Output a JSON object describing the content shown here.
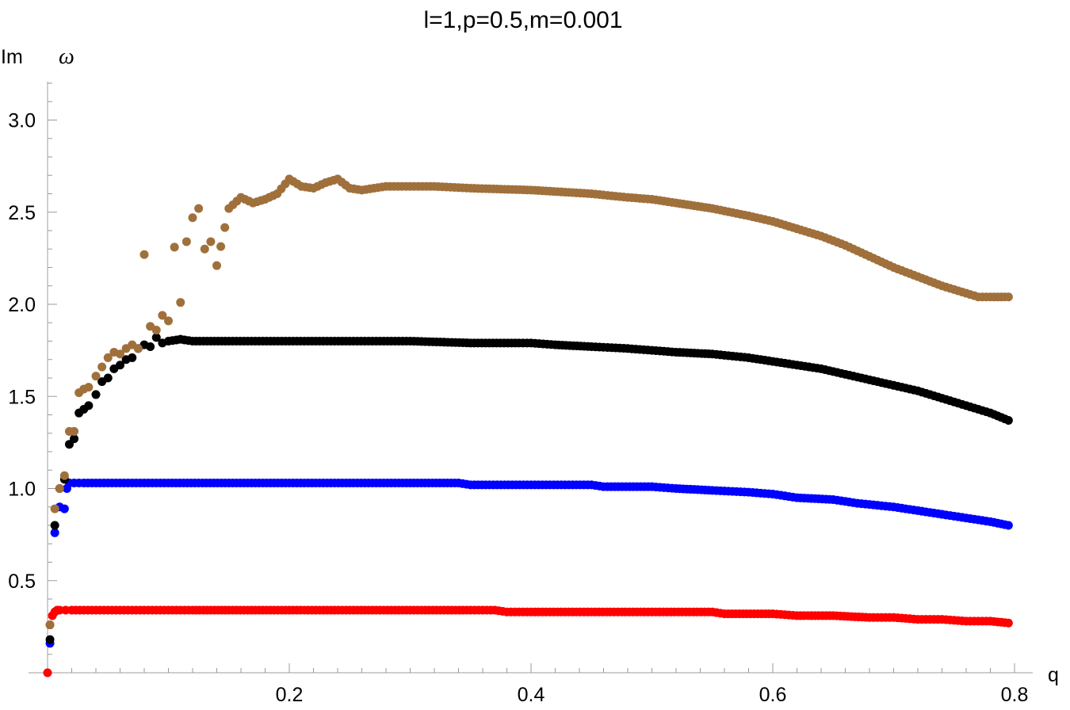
{
  "chart_data": {
    "type": "scatter",
    "title": "l=1,p=0.5,m=0.001",
    "xlabel": "q",
    "ylabel_parts": [
      "Im",
      "ω"
    ],
    "xlim": [
      0,
      0.8
    ],
    "ylim": [
      0,
      3.2
    ],
    "xticks": [
      {
        "value": 0.2,
        "label": "0.2"
      },
      {
        "value": 0.4,
        "label": "0.4"
      },
      {
        "value": 0.6,
        "label": "0.6"
      },
      {
        "value": 0.8,
        "label": "0.8"
      }
    ],
    "yticks": [
      {
        "value": 0.5,
        "label": "0.5"
      },
      {
        "value": 1.0,
        "label": "1.0"
      },
      {
        "value": 1.5,
        "label": "1.5"
      },
      {
        "value": 2.0,
        "label": "2.0"
      },
      {
        "value": 2.5,
        "label": "2.5"
      },
      {
        "value": 3.0,
        "label": "3.0"
      }
    ],
    "grid": false,
    "series": [
      {
        "color": "#ff0000",
        "x": [
          0.0,
          0.002,
          0.004,
          0.006,
          0.008,
          0.01,
          0.015,
          0.02,
          0.03,
          0.04,
          0.05,
          0.06,
          0.08,
          0.1,
          0.12,
          0.15,
          0.2,
          0.25,
          0.3,
          0.35,
          0.37,
          0.38,
          0.4,
          0.45,
          0.5,
          0.55,
          0.56,
          0.6,
          0.62,
          0.65,
          0.68,
          0.7,
          0.72,
          0.74,
          0.76,
          0.78,
          0.795
        ],
        "y": [
          0.0,
          0.26,
          0.31,
          0.33,
          0.34,
          0.34,
          0.34,
          0.34,
          0.34,
          0.34,
          0.34,
          0.34,
          0.34,
          0.34,
          0.34,
          0.34,
          0.34,
          0.34,
          0.34,
          0.34,
          0.34,
          0.33,
          0.33,
          0.33,
          0.33,
          0.33,
          0.32,
          0.32,
          0.31,
          0.31,
          0.3,
          0.3,
          0.29,
          0.29,
          0.28,
          0.28,
          0.27
        ]
      },
      {
        "color": "#0000ff",
        "x": [
          0.002,
          0.006,
          0.01,
          0.014,
          0.016,
          0.018,
          0.022,
          0.03,
          0.04,
          0.06,
          0.08,
          0.1,
          0.15,
          0.2,
          0.25,
          0.3,
          0.34,
          0.35,
          0.4,
          0.45,
          0.46,
          0.5,
          0.52,
          0.55,
          0.58,
          0.6,
          0.62,
          0.65,
          0.67,
          0.7,
          0.72,
          0.74,
          0.76,
          0.78,
          0.795
        ],
        "y": [
          0.16,
          0.76,
          0.9,
          0.89,
          1.0,
          1.03,
          1.03,
          1.03,
          1.03,
          1.03,
          1.03,
          1.03,
          1.03,
          1.03,
          1.03,
          1.03,
          1.03,
          1.02,
          1.02,
          1.02,
          1.01,
          1.01,
          1.0,
          0.99,
          0.98,
          0.97,
          0.95,
          0.94,
          0.92,
          0.9,
          0.88,
          0.86,
          0.84,
          0.82,
          0.8
        ]
      },
      {
        "color": "#000000",
        "x": [
          0.002,
          0.006,
          0.01,
          0.014,
          0.018,
          0.022,
          0.026,
          0.03,
          0.034,
          0.04,
          0.045,
          0.05,
          0.055,
          0.06,
          0.065,
          0.07,
          0.075,
          0.08,
          0.085,
          0.09,
          0.095,
          0.1,
          0.11,
          0.12,
          0.15,
          0.2,
          0.25,
          0.3,
          0.35,
          0.39,
          0.4,
          0.42,
          0.45,
          0.48,
          0.5,
          0.52,
          0.55,
          0.58,
          0.6,
          0.62,
          0.64,
          0.66,
          0.68,
          0.7,
          0.72,
          0.74,
          0.76,
          0.78,
          0.795
        ],
        "y": [
          0.18,
          0.8,
          1.0,
          1.05,
          1.24,
          1.27,
          1.41,
          1.43,
          1.45,
          1.51,
          1.58,
          1.6,
          1.65,
          1.67,
          1.7,
          1.71,
          1.76,
          1.78,
          1.77,
          1.82,
          1.79,
          1.8,
          1.81,
          1.8,
          1.8,
          1.8,
          1.8,
          1.8,
          1.79,
          1.79,
          1.79,
          1.78,
          1.77,
          1.76,
          1.75,
          1.74,
          1.73,
          1.71,
          1.69,
          1.67,
          1.65,
          1.62,
          1.59,
          1.56,
          1.53,
          1.49,
          1.45,
          1.41,
          1.37
        ]
      },
      {
        "color": "#a0703c",
        "x": [
          0.002,
          0.006,
          0.01,
          0.014,
          0.018,
          0.022,
          0.026,
          0.03,
          0.034,
          0.04,
          0.045,
          0.05,
          0.055,
          0.06,
          0.065,
          0.07,
          0.075,
          0.08,
          0.085,
          0.09,
          0.095,
          0.1,
          0.105,
          0.11,
          0.115,
          0.12,
          0.125,
          0.13,
          0.135,
          0.14,
          0.15,
          0.16,
          0.17,
          0.18,
          0.19,
          0.2,
          0.21,
          0.22,
          0.23,
          0.24,
          0.25,
          0.26,
          0.28,
          0.3,
          0.32,
          0.35,
          0.4,
          0.45,
          0.48,
          0.5,
          0.52,
          0.55,
          0.58,
          0.6,
          0.62,
          0.64,
          0.66,
          0.68,
          0.7,
          0.72,
          0.74,
          0.76,
          0.77,
          0.78,
          0.795
        ],
        "y": [
          0.26,
          0.89,
          1.0,
          1.07,
          1.31,
          1.31,
          1.52,
          1.54,
          1.55,
          1.61,
          1.66,
          1.71,
          1.74,
          1.73,
          1.76,
          1.78,
          1.76,
          2.27,
          1.88,
          1.86,
          1.94,
          1.91,
          2.31,
          2.01,
          2.34,
          2.47,
          2.52,
          2.3,
          2.34,
          2.21,
          2.52,
          2.58,
          2.55,
          2.57,
          2.6,
          2.68,
          2.64,
          2.63,
          2.66,
          2.68,
          2.63,
          2.62,
          2.64,
          2.64,
          2.64,
          2.63,
          2.62,
          2.6,
          2.58,
          2.57,
          2.55,
          2.52,
          2.48,
          2.45,
          2.41,
          2.37,
          2.32,
          2.26,
          2.2,
          2.15,
          2.1,
          2.06,
          2.04,
          2.04,
          2.04
        ]
      }
    ]
  }
}
